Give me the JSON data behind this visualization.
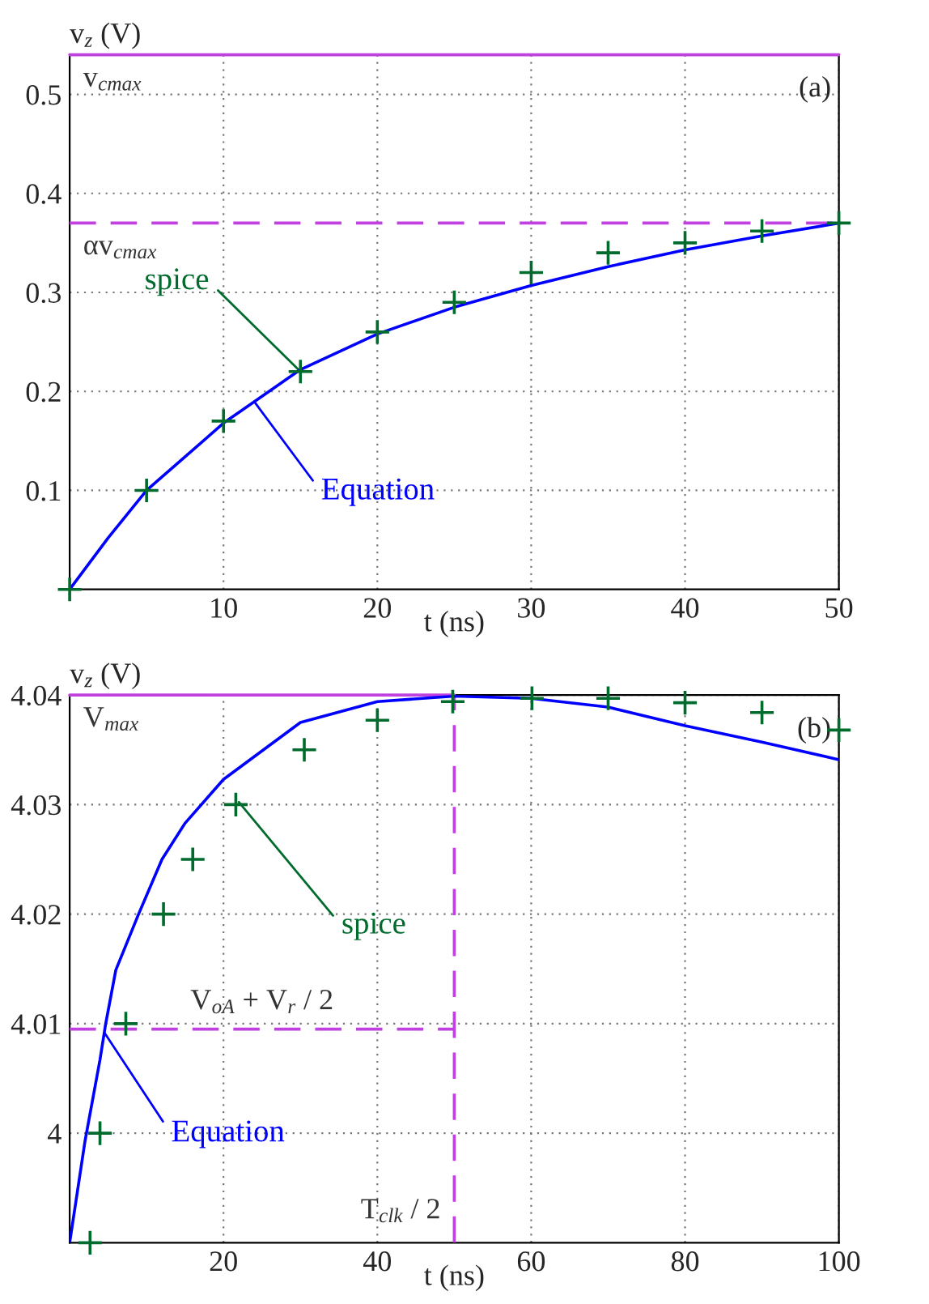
{
  "chart_data": [
    {
      "type": "line",
      "xlabel": "t (ns)",
      "ylabel": "v$_{z}$ (V)",
      "xlim": [
        0,
        50
      ],
      "ylim": [
        0,
        0.54
      ],
      "xticks": [
        10,
        20,
        30,
        40,
        50
      ],
      "yticks": [
        0.1,
        0.2,
        0.3,
        0.4,
        0.5
      ],
      "grid": true,
      "legend": false,
      "series": [
        {
          "name": "Equation",
          "type": "line",
          "color": "#0000ff",
          "line_style": "solid",
          "marker": "none",
          "x": [
            0,
            2.5,
            5,
            10,
            15,
            20,
            25,
            30,
            35,
            40,
            45,
            50
          ],
          "values": [
            0,
            0.052,
            0.1,
            0.168,
            0.222,
            0.258,
            0.285,
            0.307,
            0.326,
            0.343,
            0.357,
            0.37
          ]
        },
        {
          "name": "spice",
          "type": "scatter",
          "color": "#006b2c",
          "marker": "cross",
          "x": [
            0,
            5,
            10,
            15,
            20,
            25,
            30,
            35,
            40,
            45,
            50
          ],
          "values": [
            0,
            0.1,
            0.17,
            0.22,
            0.26,
            0.29,
            0.32,
            0.34,
            0.35,
            0.362,
            0.37
          ]
        }
      ],
      "ref_lines": [
        {
          "axis": "y",
          "value": 0.54,
          "label": "v$_{cmax}$",
          "color": "#c040e0",
          "line_style": "solid"
        },
        {
          "axis": "y",
          "value": 0.37,
          "label": "αv$_{cmax}$",
          "color": "#c040e0",
          "line_style": "dashed"
        }
      ],
      "annotations": [
        "(a)"
      ]
    },
    {
      "type": "line",
      "xlabel": "t (ns)",
      "ylabel": "v$_{z}$ (V)",
      "xlim": [
        0,
        100
      ],
      "ylim": [
        3.99,
        4.04
      ],
      "xticks": [
        20,
        40,
        60,
        80,
        100
      ],
      "yticks": [
        4,
        4.01,
        4.02,
        4.03,
        4.04
      ],
      "grid": true,
      "legend": false,
      "series": [
        {
          "name": "Equation",
          "type": "line",
          "color": "#0000ff",
          "line_style": "solid",
          "marker": "none",
          "x": [
            0,
            2,
            3.94,
            4.66,
            6,
            8.96,
            12,
            15,
            20,
            30,
            40,
            50,
            60,
            70,
            80,
            90,
            100
          ],
          "values": [
            3.99,
            3.9993,
            4.0067,
            4.0099,
            4.0149,
            4.02,
            4.025,
            4.0283,
            4.0323,
            4.0375,
            4.0394,
            4.0399,
            4.0397,
            4.0389,
            4.0372,
            4.0357,
            4.0341
          ]
        },
        {
          "name": "spice",
          "type": "scatter",
          "color": "#006b2c",
          "marker": "cross",
          "x": [
            2.65,
            3.94,
            7.3,
            12.2,
            16,
            21.6,
            30.5,
            40,
            49.8,
            60.1,
            70,
            80,
            90,
            100
          ],
          "values": [
            3.99,
            4.0,
            4.01,
            4.02,
            4.025,
            4.03,
            4.035,
            4.0377,
            4.0394,
            4.0397,
            4.0397,
            4.0393,
            4.0384,
            4.0368
          ]
        }
      ],
      "ref_lines": [
        {
          "axis": "y",
          "value": 4.04,
          "label": "V$_{max}$",
          "color": "#c040e0",
          "line_style": "solid"
        },
        {
          "axis": "y",
          "value": 4.0095,
          "label": "V$_{oA}$ + V$_{r}$ / 2",
          "color": "#c040e0",
          "line_style": "dashed"
        },
        {
          "axis": "x",
          "value": 50,
          "label": "T$_{clk}$ / 2",
          "color": "#c040e0",
          "line_style": "dashed"
        }
      ],
      "annotations": [
        "(b)"
      ]
    }
  ]
}
